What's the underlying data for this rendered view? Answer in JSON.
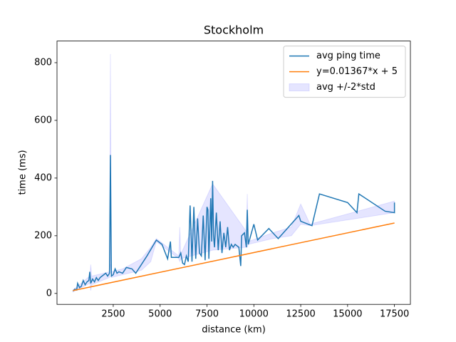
{
  "chart_data": {
    "type": "line",
    "title": "Stockholm",
    "xlabel": "distance (km)",
    "ylabel": "time (ms)",
    "xlim": [
      -500,
      18350
    ],
    "ylim": [
      -38,
      875
    ],
    "xticks": [
      2500,
      5000,
      7500,
      10000,
      12500,
      15000,
      17500
    ],
    "yticks": [
      0,
      200,
      400,
      600,
      800
    ],
    "legend": "upper right",
    "series": [
      {
        "name": "avg ping time",
        "color": "#1f77b4",
        "x": [
          350,
          450,
          550,
          600,
          700,
          800,
          900,
          1000,
          1100,
          1200,
          1250,
          1300,
          1400,
          1500,
          1600,
          1700,
          1800,
          1900,
          2000,
          2100,
          2200,
          2300,
          2350,
          2400,
          2500,
          2600,
          2700,
          2800,
          3000,
          3200,
          3500,
          3700,
          4300,
          4800,
          5100,
          5400,
          5550,
          5600,
          6000,
          6100,
          6200,
          6300,
          6400,
          6500,
          6600,
          6700,
          6800,
          6900,
          7000,
          7100,
          7200,
          7300,
          7400,
          7500,
          7550,
          7600,
          7700,
          7750,
          7800,
          7850,
          7900,
          8000,
          8100,
          8200,
          8300,
          8400,
          8500,
          8600,
          8700,
          8800,
          8900,
          9000,
          9200,
          9300,
          9350,
          9500,
          9600,
          9650,
          9700,
          10000,
          10200,
          10800,
          11300,
          12400,
          12500,
          13100,
          13500,
          15000,
          15500,
          15600,
          17000,
          17500,
          17500
        ],
        "values": [
          8,
          15,
          12,
          35,
          20,
          25,
          45,
          30,
          40,
          45,
          75,
          35,
          50,
          40,
          55,
          45,
          55,
          60,
          65,
          70,
          60,
          70,
          480,
          60,
          65,
          85,
          70,
          75,
          70,
          90,
          85,
          70,
          130,
          185,
          170,
          120,
          180,
          125,
          125,
          140,
          105,
          100,
          130,
          110,
          305,
          110,
          300,
          120,
          260,
          140,
          130,
          270,
          115,
          300,
          290,
          120,
          330,
          180,
          390,
          200,
          160,
          280,
          150,
          250,
          140,
          210,
          160,
          230,
          150,
          170,
          160,
          170,
          160,
          95,
          200,
          210,
          160,
          290,
          170,
          240,
          185,
          225,
          190,
          270,
          250,
          235,
          345,
          315,
          280,
          345,
          285,
          280,
          315
        ]
      },
      {
        "name": "y=0.01367*x + 5",
        "color": "#ff7f0e",
        "x": [
          350,
          17500
        ],
        "values": [
          9.78,
          244.2
        ]
      },
      {
        "name": "avg +/-2*std",
        "color": "#0000ff",
        "x": [
          350,
          1250,
          1300,
          1350,
          2300,
          2350,
          2400,
          3000,
          4000,
          4500,
          4800,
          6000,
          6050,
          6100,
          7800,
          9600,
          9650,
          9700,
          11000,
          12000,
          12500,
          13000,
          17500
        ],
        "lower": [
          5,
          35,
          10,
          30,
          55,
          100,
          55,
          65,
          80,
          110,
          180,
          120,
          110,
          120,
          150,
          160,
          160,
          170,
          190,
          200,
          240,
          235,
          280
        ],
        "upper": [
          12,
          60,
          100,
          60,
          75,
          830,
          75,
          85,
          120,
          160,
          190,
          130,
          230,
          135,
          380,
          215,
          345,
          180,
          210,
          230,
          310,
          240,
          320
        ]
      }
    ]
  }
}
